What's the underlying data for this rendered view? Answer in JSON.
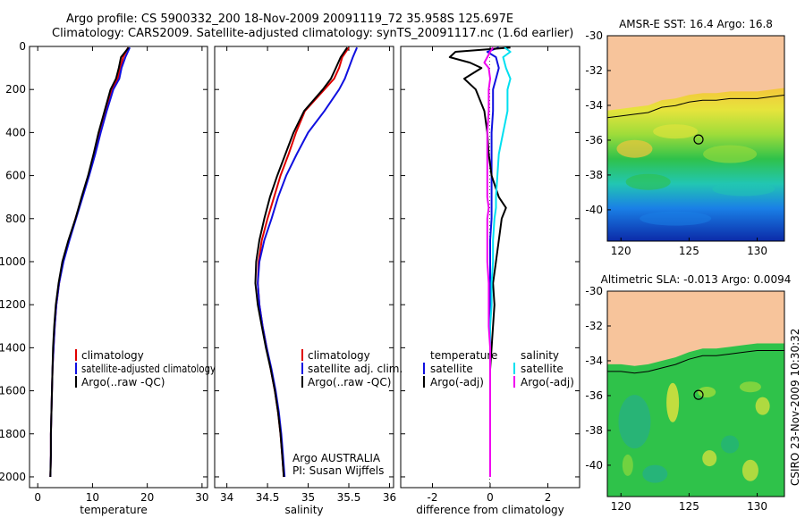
{
  "header": {
    "title_line1": "Argo profile: CS 5900332_200 18-Nov-2009 20091119_72 35.958S 125.697E",
    "title_line2": "Climatology: CARS2009. Satellite-adjusted climatology: synTS_20091117.nc (1.6d earlier)"
  },
  "colors": {
    "climatology": "#e00000",
    "satellite": "#1010e0",
    "argo": "#000000",
    "satellite_salinity": "#00e0f0",
    "argo_adj_salinity": "#f000f0",
    "land": "#f7c49b"
  },
  "chart_data": [
    {
      "id": "temperature",
      "type": "line",
      "xlabel": "temperature",
      "xlim": [
        -1.5,
        31
      ],
      "xticks": [
        "0",
        "10",
        "20",
        "30"
      ],
      "xtick_values": [
        0,
        10,
        20,
        30
      ],
      "ylim": [
        0,
        2050
      ],
      "yticks": [
        "0",
        "200",
        "400",
        "600",
        "800",
        "1000",
        "1200",
        "1400",
        "1600",
        "1800",
        "2000"
      ],
      "ytick_values": [
        0,
        200,
        400,
        600,
        800,
        1000,
        1200,
        1400,
        1600,
        1800,
        2000
      ],
      "depth": [
        5,
        50,
        100,
        150,
        200,
        300,
        400,
        500,
        600,
        700,
        800,
        900,
        1000,
        1100,
        1200,
        1300,
        1400,
        1500,
        1600,
        1700,
        1800,
        1900,
        2000
      ],
      "series": [
        {
          "name": "climatology",
          "color": "#e00000",
          "values": [
            16.5,
            15.6,
            15.1,
            14.6,
            13.6,
            12.4,
            11.3,
            10.3,
            9.3,
            8.1,
            6.9,
            5.7,
            4.6,
            3.9,
            3.4,
            3.1,
            2.9,
            2.7,
            2.6,
            2.5,
            2.4,
            2.4,
            2.3
          ]
        },
        {
          "name": "satellite-adjusted climatology",
          "color": "#1010e0",
          "values": [
            16.8,
            16.0,
            15.3,
            14.9,
            13.8,
            12.6,
            11.5,
            10.5,
            9.4,
            8.2,
            7.0,
            5.8,
            4.7,
            3.9,
            3.4,
            3.1,
            2.9,
            2.7,
            2.6,
            2.5,
            2.4,
            2.4,
            2.3
          ]
        },
        {
          "name": "Argo(..raw -QC)",
          "color": "#000000",
          "values": [
            16.6,
            15.2,
            14.8,
            14.3,
            13.3,
            12.2,
            11.1,
            10.2,
            9.2,
            8.0,
            6.9,
            5.6,
            4.5,
            3.8,
            3.3,
            3.0,
            2.8,
            2.7,
            2.6,
            2.5,
            2.4,
            2.4,
            2.3
          ]
        }
      ],
      "legend": [
        "climatology",
        "satellite-adjusted climatology",
        "Argo(..raw -QC)"
      ],
      "legend_location": "lower-center",
      "grid": false
    },
    {
      "id": "salinity",
      "type": "line",
      "xlabel": "salinity",
      "xlim": [
        33.85,
        36.05
      ],
      "xticks": [
        "34",
        "34.5",
        "35",
        "35.5",
        "36"
      ],
      "xtick_values": [
        34,
        34.5,
        35,
        35.5,
        36
      ],
      "ylim": [
        0,
        2050
      ],
      "depth": [
        5,
        50,
        100,
        150,
        200,
        300,
        400,
        500,
        600,
        700,
        800,
        900,
        1000,
        1100,
        1200,
        1300,
        1400,
        1500,
        1600,
        1700,
        1800,
        1900,
        2000
      ],
      "series": [
        {
          "name": "climatology",
          "color": "#e00000",
          "values": [
            35.5,
            35.42,
            35.38,
            35.32,
            35.2,
            34.96,
            34.85,
            34.76,
            34.66,
            34.58,
            34.5,
            34.43,
            34.39,
            34.38,
            34.4,
            34.44,
            34.49,
            34.54,
            34.59,
            34.63,
            34.66,
            34.68,
            34.7
          ]
        },
        {
          "name": "satellite adj. clim.",
          "color": "#1010e0",
          "values": [
            35.6,
            35.55,
            35.5,
            35.45,
            35.38,
            35.2,
            35.0,
            34.86,
            34.73,
            34.63,
            34.55,
            34.46,
            34.4,
            34.38,
            34.4,
            34.44,
            34.49,
            34.55,
            34.6,
            34.64,
            34.67,
            34.69,
            34.71
          ]
        },
        {
          "name": "Argo(..raw -QC)",
          "color": "#000000",
          "values": [
            35.48,
            35.4,
            35.34,
            35.28,
            35.18,
            34.95,
            34.82,
            34.72,
            34.62,
            34.53,
            34.46,
            34.4,
            34.36,
            34.35,
            34.38,
            34.43,
            34.48,
            34.54,
            34.59,
            34.63,
            34.66,
            34.68,
            34.7
          ]
        }
      ],
      "legend": [
        "climatology",
        "satellite adj. clim.",
        "Argo(..raw -QC)"
      ],
      "legend_location": "lower-center",
      "annotation_line1": "Argo AUSTRALIA",
      "annotation_line2": "PI: Susan Wijffels",
      "grid": false
    },
    {
      "id": "difference",
      "type": "line",
      "xlabel": "difference from climatology",
      "xlim": [
        -3.1,
        3.1
      ],
      "xticks": [
        "-2",
        "0",
        "2"
      ],
      "xtick_values": [
        -2,
        0,
        2
      ],
      "ylim": [
        0,
        2050
      ],
      "depth": [
        5,
        25,
        50,
        75,
        100,
        150,
        200,
        300,
        400,
        500,
        600,
        700,
        750,
        800,
        900,
        1000,
        1100,
        1200,
        1300,
        1400,
        1500,
        1600,
        1700,
        1800,
        1900,
        2000
      ],
      "series": [
        {
          "name": "temperature satellite",
          "color": "#1010e0",
          "values": [
            0.3,
            -0.1,
            0.2,
            0.25,
            0.3,
            0.2,
            0.1,
            0.1,
            0.05,
            0.05,
            0.05,
            0.05,
            0.05,
            0.05,
            0.0,
            0.0,
            0.0,
            0.0,
            0.0,
            0.0,
            0.0,
            0.0,
            0.0,
            0.0,
            0.0,
            0.0
          ]
        },
        {
          "name": "temperature Argo(-adj)",
          "color": "#000000",
          "values": [
            0.7,
            -1.2,
            -1.4,
            -0.7,
            -0.3,
            -0.9,
            -0.5,
            -0.2,
            -0.1,
            -0.05,
            0.05,
            0.3,
            0.55,
            0.4,
            0.3,
            0.2,
            0.1,
            0.15,
            0.1,
            0.05,
            0.0,
            0.0,
            0.0,
            0.0,
            0.0,
            0.0
          ]
        },
        {
          "name": "salinity satellite",
          "color": "#00e0f0",
          "values": [
            0.5,
            0.7,
            0.45,
            0.5,
            0.55,
            0.7,
            0.6,
            0.6,
            0.45,
            0.3,
            0.25,
            0.2,
            0.2,
            0.15,
            0.1,
            0.1,
            0.05,
            0.05,
            0.0,
            0.0,
            0.0,
            0.0,
            0.0,
            0.0,
            0.0,
            0.0
          ]
        },
        {
          "name": "salinity Argo(-adj)",
          "color": "#f000f0",
          "values": [
            0.1,
            0.0,
            -0.1,
            -0.2,
            -0.05,
            0.0,
            -0.05,
            -0.05,
            -0.1,
            -0.1,
            -0.1,
            -0.1,
            -0.05,
            -0.1,
            -0.1,
            -0.1,
            -0.05,
            -0.05,
            -0.05,
            0.0,
            0.0,
            0.0,
            0.0,
            0.0,
            0.0,
            0.0
          ]
        }
      ],
      "legend_temperature_header": "temperature",
      "legend_temperature": [
        "satellite",
        "Argo(-adj)"
      ],
      "legend_salinity_header": "salinity",
      "legend_salinity": [
        "satellite",
        "Argo(-adj)"
      ],
      "legend_location": "lower-center",
      "grid": false
    },
    {
      "id": "sst_map",
      "type": "heatmap",
      "title": "AMSR-E SST: 16.4 Argo: 16.8",
      "xlim": [
        119,
        132
      ],
      "ylim": [
        -41.8,
        -30
      ],
      "xticks": [
        "120",
        "125",
        "130"
      ],
      "xtick_values": [
        120,
        125,
        130
      ],
      "yticks": [
        "-30",
        "-32",
        "-34",
        "-36",
        "-38",
        "-40"
      ],
      "ytick_values": [
        -30,
        -32,
        -34,
        -36,
        -38,
        -40
      ],
      "float_position": [
        125.697,
        -35.958
      ],
      "coastline_lat": [
        -34.3,
        -34.2,
        -34.1,
        -34.0,
        -33.7,
        -33.6,
        -33.4,
        -33.3,
        -33.3,
        -33.2,
        -33.2,
        -33.2,
        -33.1,
        -33.0
      ],
      "coastline_lon": [
        119,
        120,
        121,
        122,
        123,
        124,
        125,
        126,
        127,
        128,
        129,
        130,
        131,
        132
      ]
    },
    {
      "id": "sla_map",
      "type": "heatmap",
      "title": "Altimetric SLA: -0.013 Argo: 0.0094",
      "xlim": [
        119,
        132
      ],
      "ylim": [
        -41.8,
        -30
      ],
      "xticks": [
        "120",
        "125",
        "130"
      ],
      "xtick_values": [
        120,
        125,
        130
      ],
      "yticks": [
        "-30",
        "-32",
        "-34",
        "-36",
        "-38",
        "-40"
      ],
      "ytick_values": [
        -30,
        -32,
        -34,
        -36,
        -38,
        -40
      ],
      "float_position": [
        125.697,
        -35.958
      ],
      "coastline_lat": [
        -34.2,
        -34.2,
        -34.3,
        -34.2,
        -34.0,
        -33.8,
        -33.5,
        -33.3,
        -33.3,
        -33.2,
        -33.1,
        -33.0,
        -33.0,
        -33.0
      ],
      "coastline_lon": [
        119,
        120,
        121,
        122,
        123,
        124,
        125,
        126,
        127,
        128,
        129,
        130,
        131,
        132
      ]
    }
  ],
  "footer": {
    "credit": "CSIRO 23-Nov-2009 10:30:32"
  }
}
